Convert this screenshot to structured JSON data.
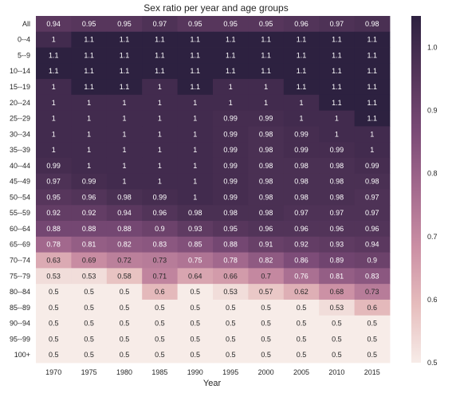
{
  "chart_data": {
    "type": "heatmap",
    "title": "Sex ratio per year and age groups",
    "xlabel": "Year",
    "ylabel": "",
    "x": [
      "1970",
      "1975",
      "1980",
      "1985",
      "1990",
      "1995",
      "2000",
      "2005",
      "2010",
      "2015"
    ],
    "y": [
      "All",
      "0--4",
      "5--9",
      "10--14",
      "15--19",
      "20--24",
      "25--29",
      "30--34",
      "35--39",
      "40--44",
      "45--49",
      "50--54",
      "55--59",
      "60--64",
      "65--69",
      "70--74",
      "75--79",
      "80--84",
      "85--89",
      "90--94",
      "95--99",
      "100+"
    ],
    "values": [
      [
        0.94,
        0.95,
        0.95,
        0.97,
        0.95,
        0.95,
        0.95,
        0.96,
        0.97,
        0.98
      ],
      [
        1,
        1.1,
        1.1,
        1.1,
        1.1,
        1.1,
        1.1,
        1.1,
        1.1,
        1.1
      ],
      [
        1.1,
        1.1,
        1.1,
        1.1,
        1.1,
        1.1,
        1.1,
        1.1,
        1.1,
        1.1
      ],
      [
        1.1,
        1.1,
        1.1,
        1.1,
        1.1,
        1.1,
        1.1,
        1.1,
        1.1,
        1.1
      ],
      [
        1,
        1.1,
        1.1,
        1,
        1.1,
        1,
        1,
        1.1,
        1.1,
        1.1
      ],
      [
        1,
        1,
        1,
        1,
        1,
        1,
        1,
        1,
        1.1,
        1.1
      ],
      [
        1,
        1,
        1,
        1,
        1,
        0.99,
        0.99,
        1,
        1,
        1.1
      ],
      [
        1,
        1,
        1,
        1,
        1,
        0.99,
        0.98,
        0.99,
        1,
        1
      ],
      [
        1,
        1,
        1,
        1,
        1,
        0.99,
        0.98,
        0.99,
        0.99,
        1
      ],
      [
        0.99,
        1,
        1,
        1,
        1,
        0.99,
        0.98,
        0.98,
        0.98,
        0.99
      ],
      [
        0.97,
        0.99,
        1,
        1,
        1,
        0.99,
        0.98,
        0.98,
        0.98,
        0.98
      ],
      [
        0.95,
        0.96,
        0.98,
        0.99,
        1,
        0.99,
        0.98,
        0.98,
        0.98,
        0.97
      ],
      [
        0.92,
        0.92,
        0.94,
        0.96,
        0.98,
        0.98,
        0.98,
        0.97,
        0.97,
        0.97
      ],
      [
        0.88,
        0.88,
        0.88,
        0.9,
        0.93,
        0.95,
        0.96,
        0.96,
        0.96,
        0.96
      ],
      [
        0.78,
        0.81,
        0.82,
        0.83,
        0.85,
        0.88,
        0.91,
        0.92,
        0.93,
        0.94
      ],
      [
        0.63,
        0.69,
        0.72,
        0.73,
        0.75,
        0.78,
        0.82,
        0.86,
        0.89,
        0.9
      ],
      [
        0.53,
        0.53,
        0.58,
        0.71,
        0.64,
        0.66,
        0.7,
        0.76,
        0.81,
        0.83
      ],
      [
        0.5,
        0.5,
        0.5,
        0.6,
        0.5,
        0.53,
        0.57,
        0.62,
        0.68,
        0.73
      ],
      [
        0.5,
        0.5,
        0.5,
        0.5,
        0.5,
        0.5,
        0.5,
        0.5,
        0.53,
        0.6
      ],
      [
        0.5,
        0.5,
        0.5,
        0.5,
        0.5,
        0.5,
        0.5,
        0.5,
        0.5,
        0.5
      ],
      [
        0.5,
        0.5,
        0.5,
        0.5,
        0.5,
        0.5,
        0.5,
        0.5,
        0.5,
        0.5
      ],
      [
        0.5,
        0.5,
        0.5,
        0.5,
        0.5,
        0.5,
        0.5,
        0.5,
        0.5,
        0.5
      ]
    ],
    "colorbar": {
      "min": 0.5,
      "max": 1.05,
      "ticks": [
        0.5,
        0.6,
        0.7,
        0.8,
        0.9,
        1.0
      ],
      "tick_labels": [
        "0.5",
        "0.6",
        "0.7",
        "0.8",
        "0.9",
        "1.0"
      ]
    },
    "colormap": [
      "#f7ece8",
      "#e6bdbd",
      "#cb8fa4",
      "#a46a8e",
      "#7a4a76",
      "#533459",
      "#2d2140"
    ],
    "grid": false,
    "legend": "colorbar-right"
  }
}
